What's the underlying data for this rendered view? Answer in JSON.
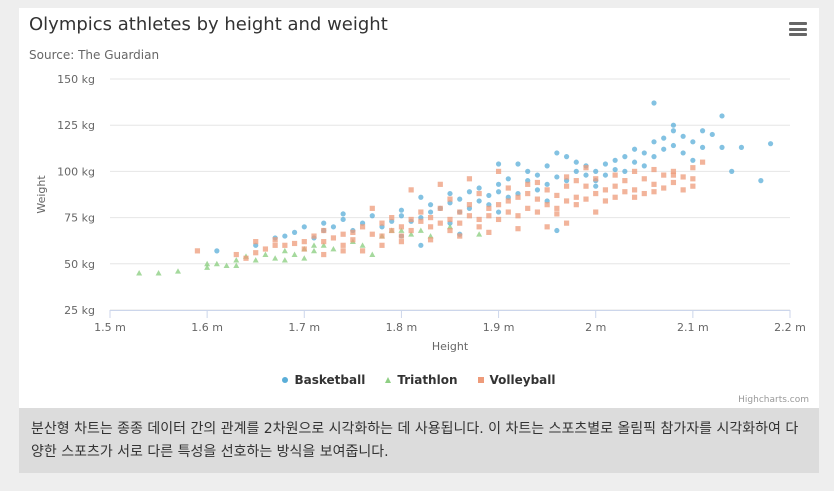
{
  "chart": {
    "title": "Olympics athletes by height and weight",
    "subtitle": "Source: The Guardian",
    "credits": "Highcharts.com",
    "menu_icon": "hamburger-menu-icon"
  },
  "caption": "분산형 차트는 종종 데이터 간의 관계를 2차원으로 시각화하는 데 사용됩니다. 이 차트는 스포츠별로 올림픽 참가자를 시각화하여 다양한 스포츠가 서로 다른 특성을 선호하는 방식을 보여줍니다.",
  "chart_data": {
    "type": "scatter",
    "xlabel": "Height",
    "ylabel": "Weight",
    "xlim": [
      1.5,
      2.2
    ],
    "ylim": [
      25,
      150
    ],
    "x_ticks": [
      "1.5 m",
      "1.6 m",
      "1.7 m",
      "1.8 m",
      "1.9 m",
      "2 m",
      "2.1 m",
      "2.2 m"
    ],
    "y_ticks": [
      "25 kg",
      "50 kg",
      "75 kg",
      "100 kg",
      "125 kg",
      "150 kg"
    ],
    "grid": true,
    "legend_position": "bottom-center",
    "series": [
      {
        "name": "Basketball",
        "color": "#5aaed8",
        "marker": "circle",
        "points": [
          [
            1.61,
            57
          ],
          [
            1.65,
            60
          ],
          [
            1.67,
            64
          ],
          [
            1.68,
            65
          ],
          [
            1.69,
            67
          ],
          [
            1.7,
            70
          ],
          [
            1.71,
            64
          ],
          [
            1.72,
            68
          ],
          [
            1.72,
            72
          ],
          [
            1.73,
            70
          ],
          [
            1.74,
            74
          ],
          [
            1.74,
            77
          ],
          [
            1.75,
            68
          ],
          [
            1.76,
            72
          ],
          [
            1.77,
            76
          ],
          [
            1.78,
            70
          ],
          [
            1.79,
            73
          ],
          [
            1.8,
            76
          ],
          [
            1.8,
            79
          ],
          [
            1.81,
            73
          ],
          [
            1.82,
            86
          ],
          [
            1.82,
            75
          ],
          [
            1.83,
            78
          ],
          [
            1.83,
            82
          ],
          [
            1.84,
            80
          ],
          [
            1.85,
            83
          ],
          [
            1.85,
            88
          ],
          [
            1.86,
            78
          ],
          [
            1.86,
            85
          ],
          [
            1.87,
            80
          ],
          [
            1.87,
            89
          ],
          [
            1.88,
            84
          ],
          [
            1.88,
            91
          ],
          [
            1.89,
            82
          ],
          [
            1.89,
            87
          ],
          [
            1.9,
            89
          ],
          [
            1.9,
            93
          ],
          [
            1.9,
            104
          ],
          [
            1.91,
            86
          ],
          [
            1.91,
            96
          ],
          [
            1.92,
            88
          ],
          [
            1.92,
            104
          ],
          [
            1.93,
            95
          ],
          [
            1.93,
            100
          ],
          [
            1.94,
            90
          ],
          [
            1.94,
            98
          ],
          [
            1.95,
            93
          ],
          [
            1.95,
            103
          ],
          [
            1.96,
            97
          ],
          [
            1.96,
            110
          ],
          [
            1.97,
            95
          ],
          [
            1.97,
            108
          ],
          [
            1.98,
            100
          ],
          [
            1.98,
            105
          ],
          [
            1.99,
            98
          ],
          [
            1.99,
            103
          ],
          [
            2.0,
            100
          ],
          [
            2.0,
            95
          ],
          [
            2.01,
            104
          ],
          [
            2.01,
            98
          ],
          [
            2.02,
            106
          ],
          [
            2.02,
            101
          ],
          [
            2.03,
            108
          ],
          [
            2.03,
            100
          ],
          [
            2.04,
            112
          ],
          [
            2.04,
            105
          ],
          [
            2.05,
            110
          ],
          [
            2.05,
            103
          ],
          [
            2.06,
            116
          ],
          [
            2.06,
            108
          ],
          [
            2.06,
            137
          ],
          [
            2.07,
            118
          ],
          [
            2.07,
            112
          ],
          [
            2.08,
            122
          ],
          [
            2.08,
            114
          ],
          [
            2.08,
            125
          ],
          [
            2.09,
            119
          ],
          [
            2.09,
            110
          ],
          [
            2.1,
            116
          ],
          [
            2.1,
            106
          ],
          [
            2.11,
            122
          ],
          [
            2.11,
            113
          ],
          [
            2.12,
            120
          ],
          [
            2.13,
            130
          ],
          [
            2.13,
            113
          ],
          [
            2.14,
            100
          ],
          [
            2.15,
            113
          ],
          [
            2.17,
            95
          ],
          [
            2.18,
            115
          ],
          [
            1.8,
            65
          ],
          [
            1.85,
            72
          ],
          [
            1.9,
            78
          ],
          [
            1.95,
            84
          ],
          [
            2.0,
            92
          ],
          [
            1.82,
            60
          ],
          [
            1.86,
            66
          ],
          [
            1.96,
            68
          ]
        ]
      },
      {
        "name": "Triathlon",
        "color": "#8fcf84",
        "marker": "triangle",
        "points": [
          [
            1.53,
            45
          ],
          [
            1.55,
            45
          ],
          [
            1.57,
            46
          ],
          [
            1.6,
            50
          ],
          [
            1.6,
            48
          ],
          [
            1.61,
            50
          ],
          [
            1.62,
            49
          ],
          [
            1.63,
            49
          ],
          [
            1.63,
            52
          ],
          [
            1.64,
            54
          ],
          [
            1.65,
            52
          ],
          [
            1.66,
            55
          ],
          [
            1.67,
            53
          ],
          [
            1.68,
            57
          ],
          [
            1.68,
            52
          ],
          [
            1.69,
            55
          ],
          [
            1.7,
            58
          ],
          [
            1.7,
            53
          ],
          [
            1.71,
            57
          ],
          [
            1.71,
            60
          ],
          [
            1.72,
            60
          ],
          [
            1.73,
            58
          ],
          [
            1.75,
            62
          ],
          [
            1.76,
            60
          ],
          [
            1.77,
            55
          ],
          [
            1.78,
            65
          ],
          [
            1.79,
            68
          ],
          [
            1.8,
            68
          ],
          [
            1.81,
            66
          ],
          [
            1.82,
            68
          ],
          [
            1.83,
            65
          ],
          [
            1.85,
            70
          ],
          [
            1.88,
            66
          ]
        ]
      },
      {
        "name": "Volleyball",
        "color": "#ee9b7a",
        "marker": "square",
        "points": [
          [
            1.59,
            57
          ],
          [
            1.63,
            55
          ],
          [
            1.64,
            53
          ],
          [
            1.65,
            56
          ],
          [
            1.65,
            62
          ],
          [
            1.66,
            58
          ],
          [
            1.67,
            60
          ],
          [
            1.67,
            63
          ],
          [
            1.68,
            60
          ],
          [
            1.69,
            61
          ],
          [
            1.7,
            62
          ],
          [
            1.7,
            58
          ],
          [
            1.71,
            65
          ],
          [
            1.72,
            62
          ],
          [
            1.72,
            68
          ],
          [
            1.73,
            64
          ],
          [
            1.74,
            66
          ],
          [
            1.74,
            60
          ],
          [
            1.75,
            67
          ],
          [
            1.75,
            63
          ],
          [
            1.76,
            70
          ],
          [
            1.77,
            66
          ],
          [
            1.77,
            80
          ],
          [
            1.78,
            65
          ],
          [
            1.78,
            72
          ],
          [
            1.79,
            68
          ],
          [
            1.79,
            75
          ],
          [
            1.8,
            70
          ],
          [
            1.8,
            65
          ],
          [
            1.81,
            74
          ],
          [
            1.81,
            68
          ],
          [
            1.82,
            73
          ],
          [
            1.82,
            78
          ],
          [
            1.83,
            70
          ],
          [
            1.83,
            75
          ],
          [
            1.84,
            72
          ],
          [
            1.84,
            80
          ],
          [
            1.85,
            74
          ],
          [
            1.85,
            68
          ],
          [
            1.86,
            78
          ],
          [
            1.86,
            72
          ],
          [
            1.87,
            76
          ],
          [
            1.87,
            82
          ],
          [
            1.88,
            74
          ],
          [
            1.88,
            70
          ],
          [
            1.89,
            80
          ],
          [
            1.89,
            76
          ],
          [
            1.9,
            82
          ],
          [
            1.9,
            74
          ],
          [
            1.91,
            84
          ],
          [
            1.91,
            78
          ],
          [
            1.92,
            86
          ],
          [
            1.92,
            76
          ],
          [
            1.93,
            88
          ],
          [
            1.93,
            80
          ],
          [
            1.94,
            85
          ],
          [
            1.94,
            78
          ],
          [
            1.95,
            90
          ],
          [
            1.95,
            82
          ],
          [
            1.96,
            87
          ],
          [
            1.96,
            80
          ],
          [
            1.97,
            92
          ],
          [
            1.97,
            84
          ],
          [
            1.98,
            95
          ],
          [
            1.98,
            86
          ],
          [
            1.99,
            92
          ],
          [
            1.99,
            85
          ],
          [
            2.0,
            96
          ],
          [
            2.0,
            88
          ],
          [
            2.01,
            90
          ],
          [
            2.01,
            84
          ],
          [
            2.02,
            98
          ],
          [
            2.02,
            92
          ],
          [
            2.03,
            95
          ],
          [
            2.03,
            89
          ],
          [
            2.04,
            100
          ],
          [
            2.04,
            90
          ],
          [
            2.05,
            96
          ],
          [
            2.05,
            88
          ],
          [
            2.06,
            101
          ],
          [
            2.06,
            93
          ],
          [
            2.07,
            98
          ],
          [
            2.07,
            91
          ],
          [
            2.08,
            100
          ],
          [
            2.08,
            94
          ],
          [
            2.09,
            97
          ],
          [
            2.09,
            90
          ],
          [
            2.1,
            102
          ],
          [
            2.1,
            96
          ],
          [
            2.11,
            105
          ],
          [
            1.81,
            90
          ],
          [
            1.84,
            93
          ],
          [
            1.87,
            96
          ],
          [
            1.9,
            100
          ],
          [
            1.93,
            93
          ],
          [
            1.95,
            70
          ],
          [
            1.97,
            72
          ],
          [
            2.0,
            78
          ],
          [
            1.78,
            60
          ],
          [
            1.8,
            62
          ],
          [
            1.83,
            63
          ],
          [
            1.86,
            65
          ],
          [
            1.89,
            67
          ],
          [
            1.92,
            69
          ],
          [
            1.76,
            57
          ],
          [
            1.74,
            57
          ],
          [
            1.72,
            55
          ],
          [
            1.85,
            85
          ],
          [
            1.88,
            88
          ],
          [
            1.91,
            91
          ],
          [
            1.94,
            94
          ],
          [
            1.97,
            97
          ],
          [
            1.99,
            102
          ],
          [
            1.96,
            77
          ],
          [
            1.98,
            82
          ],
          [
            2.02,
            86
          ],
          [
            2.04,
            86
          ],
          [
            2.06,
            89
          ],
          [
            2.08,
            98
          ],
          [
            2.1,
            92
          ]
        ]
      }
    ]
  }
}
